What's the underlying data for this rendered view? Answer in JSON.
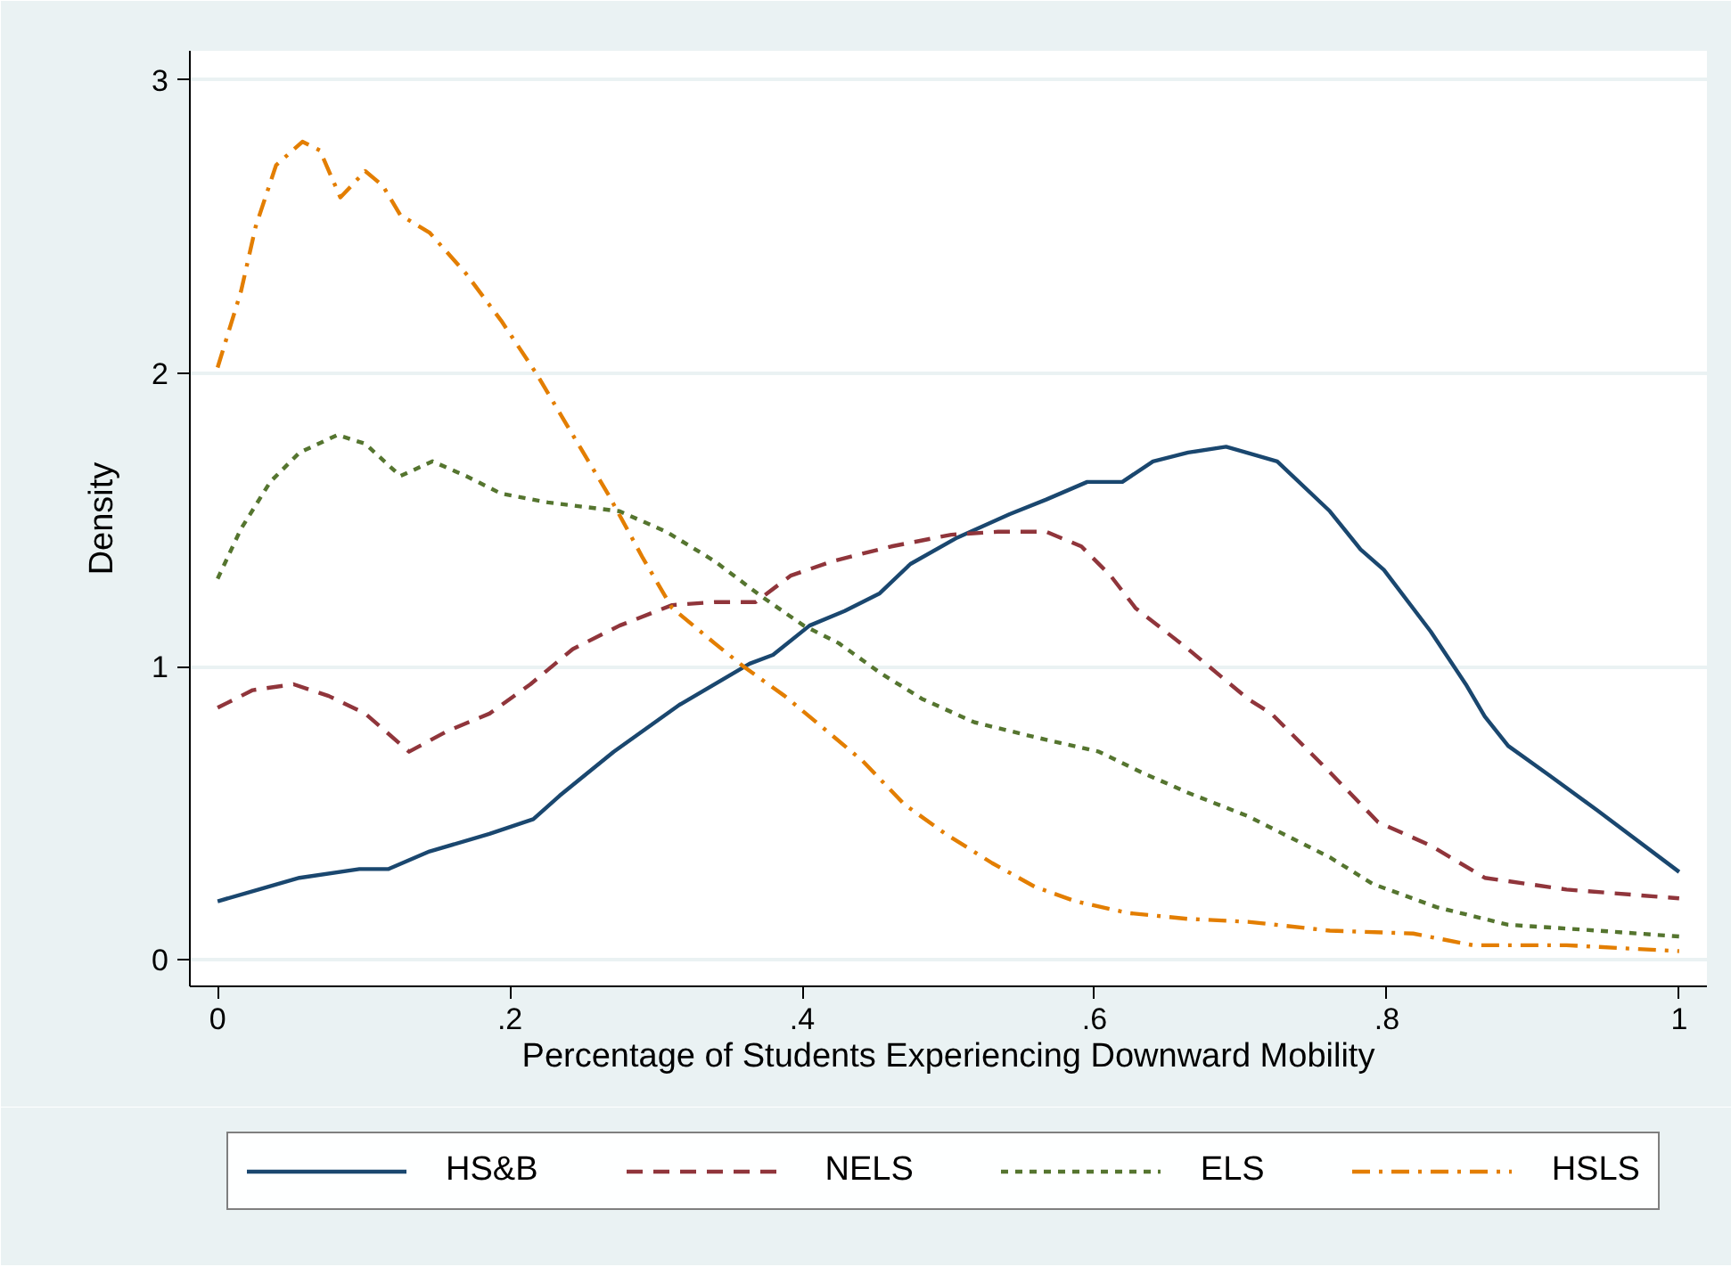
{
  "chart_data": {
    "type": "line",
    "xlabel": "Percentage of Students Experiencing Downward Mobility",
    "ylabel": "Density",
    "xlim": [
      -0.019,
      1.019
    ],
    "ylim": [
      -0.09,
      3.1
    ],
    "xticks": [
      {
        "value": 0,
        "label": "0"
      },
      {
        "value": 0.2,
        "label": ".2"
      },
      {
        "value": 0.4,
        "label": ".4"
      },
      {
        "value": 0.6,
        "label": ".6"
      },
      {
        "value": 0.8,
        "label": ".8"
      },
      {
        "value": 1,
        "label": "1"
      }
    ],
    "yticks": [
      0,
      1,
      2,
      3
    ],
    "grid": "y",
    "legend": "bottom",
    "series": [
      {
        "name": "HS&B",
        "color": "#1a476f",
        "line_style": "solid",
        "x": [
          0,
          0.028,
          0.056,
          0.097,
          0.117,
          0.145,
          0.186,
          0.216,
          0.234,
          0.271,
          0.316,
          0.364,
          0.38,
          0.405,
          0.429,
          0.453,
          0.474,
          0.506,
          0.542,
          0.567,
          0.595,
          0.619,
          0.64,
          0.664,
          0.69,
          0.725,
          0.761,
          0.782,
          0.798,
          0.83,
          0.854,
          0.867,
          0.883,
          0.911,
          0.944,
          1.0
        ],
        "values": [
          0.2,
          0.24,
          0.28,
          0.31,
          0.31,
          0.37,
          0.43,
          0.48,
          0.56,
          0.71,
          0.87,
          1.01,
          1.04,
          1.14,
          1.19,
          1.25,
          1.35,
          1.44,
          1.52,
          1.57,
          1.63,
          1.63,
          1.7,
          1.73,
          1.75,
          1.7,
          1.53,
          1.4,
          1.33,
          1.12,
          0.94,
          0.83,
          0.73,
          0.63,
          0.51,
          0.3
        ]
      },
      {
        "name": "NELS",
        "color": "#90353b",
        "line_style": "dashed",
        "x": [
          0,
          0.024,
          0.052,
          0.076,
          0.101,
          0.131,
          0.157,
          0.186,
          0.214,
          0.243,
          0.275,
          0.311,
          0.34,
          0.368,
          0.392,
          0.421,
          0.461,
          0.502,
          0.534,
          0.567,
          0.591,
          0.611,
          0.628,
          0.664,
          0.705,
          0.721,
          0.761,
          0.794,
          0.83,
          0.867,
          0.923,
          1.0
        ],
        "values": [
          0.86,
          0.92,
          0.94,
          0.9,
          0.84,
          0.71,
          0.78,
          0.84,
          0.94,
          1.06,
          1.14,
          1.21,
          1.22,
          1.22,
          1.31,
          1.36,
          1.41,
          1.45,
          1.46,
          1.46,
          1.41,
          1.31,
          1.2,
          1.06,
          0.89,
          0.84,
          0.64,
          0.47,
          0.39,
          0.28,
          0.24,
          0.21
        ]
      },
      {
        "name": "ELS",
        "color": "#55752f",
        "line_style": "dotted",
        "x": [
          0,
          0.016,
          0.036,
          0.056,
          0.082,
          0.101,
          0.125,
          0.147,
          0.17,
          0.194,
          0.226,
          0.275,
          0.307,
          0.34,
          0.372,
          0.401,
          0.425,
          0.453,
          0.482,
          0.518,
          0.559,
          0.603,
          0.632,
          0.664,
          0.705,
          0.721,
          0.761,
          0.79,
          0.834,
          0.883,
          0.944,
          1.0
        ],
        "values": [
          1.3,
          1.47,
          1.63,
          1.73,
          1.79,
          1.76,
          1.65,
          1.7,
          1.65,
          1.59,
          1.56,
          1.53,
          1.46,
          1.36,
          1.24,
          1.14,
          1.08,
          0.98,
          0.89,
          0.81,
          0.76,
          0.71,
          0.64,
          0.57,
          0.49,
          0.45,
          0.35,
          0.26,
          0.18,
          0.12,
          0.1,
          0.08
        ]
      },
      {
        "name": "HSLS",
        "color": "#e37e00",
        "line_style": "dashdot",
        "x": [
          0,
          0.016,
          0.026,
          0.04,
          0.058,
          0.07,
          0.084,
          0.101,
          0.113,
          0.125,
          0.145,
          0.17,
          0.194,
          0.218,
          0.243,
          0.267,
          0.291,
          0.311,
          0.34,
          0.36,
          0.388,
          0.417,
          0.441,
          0.47,
          0.498,
          0.53,
          0.559,
          0.587,
          0.623,
          0.664,
          0.705,
          0.761,
          0.818,
          0.859,
          0.923,
          1.0
        ],
        "values": [
          2.02,
          2.28,
          2.5,
          2.71,
          2.79,
          2.76,
          2.6,
          2.69,
          2.64,
          2.54,
          2.48,
          2.34,
          2.18,
          2.0,
          1.79,
          1.59,
          1.37,
          1.2,
          1.08,
          1.0,
          0.9,
          0.78,
          0.68,
          0.53,
          0.43,
          0.33,
          0.25,
          0.2,
          0.16,
          0.14,
          0.13,
          0.1,
          0.09,
          0.05,
          0.05,
          0.03
        ]
      }
    ]
  }
}
